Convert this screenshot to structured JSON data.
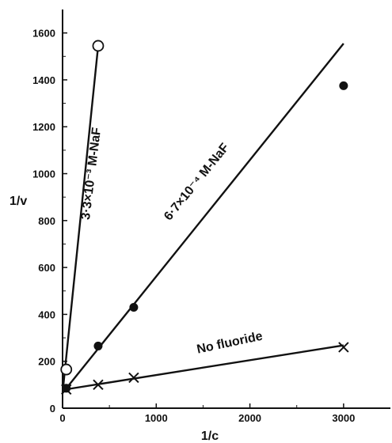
{
  "chart_data": {
    "type": "scatter",
    "xlabel": "1/c",
    "ylabel": "1/v",
    "xlim": [
      0,
      3500
    ],
    "ylim": [
      0,
      1700
    ],
    "x_ticks": [
      0,
      1000,
      2000,
      3000
    ],
    "y_ticks": [
      0,
      200,
      400,
      600,
      800,
      1000,
      1200,
      1400,
      1600
    ],
    "grid": false,
    "series": [
      {
        "name": "No fluoride",
        "marker": "cross",
        "points": [
          [
            40,
            80
          ],
          [
            380,
            100
          ],
          [
            760,
            130
          ],
          [
            3000,
            260
          ]
        ],
        "fit_line": [
          [
            0,
            78
          ],
          [
            3000,
            268
          ]
        ]
      },
      {
        "name": "6·7×10⁻⁴ M-NaF",
        "marker": "filled-circle",
        "points": [
          [
            40,
            85
          ],
          [
            380,
            265
          ],
          [
            760,
            430
          ],
          [
            3000,
            1375
          ]
        ],
        "fit_line": [
          [
            0,
            65
          ],
          [
            3000,
            1555
          ]
        ]
      },
      {
        "name": "3·3×10⁻³ M-NaF",
        "marker": "open-circle",
        "points": [
          [
            40,
            165
          ],
          [
            380,
            1545
          ]
        ],
        "fit_line": [
          [
            0,
            65
          ],
          [
            380,
            1545
          ]
        ]
      }
    ]
  }
}
